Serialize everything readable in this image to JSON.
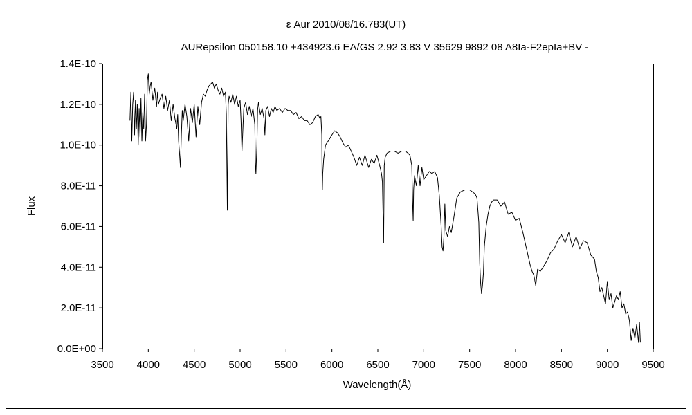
{
  "chart_data": {
    "type": "line",
    "title": "ε  Aur   2010/08/16.783(UT)",
    "subtitle": "AURepsilon 050158.10 +434923.6 EA/GS 2.92 3.83 V 35629 9892 08 A8Ia-F2epIa+BV -",
    "xlabel": "Wavelength(Å)",
    "ylabel": "Flux",
    "xlim": [
      3500,
      9500
    ],
    "ylim": [
      0,
      1.4e-10
    ],
    "x_ticks": [
      3500,
      4000,
      4500,
      5000,
      5500,
      6000,
      6500,
      7000,
      7500,
      8000,
      8500,
      9000,
      9500
    ],
    "x_tick_labels": [
      "3500",
      "4000",
      "4500",
      "5000",
      "5500",
      "6000",
      "6500",
      "7000",
      "7500",
      "8000",
      "8500",
      "9000",
      "9500"
    ],
    "y_ticks": [
      0,
      2e-11,
      4e-11,
      6e-11,
      8e-11,
      1e-10,
      1.2e-10,
      1.4e-10
    ],
    "y_tick_labels": [
      "0.0E+00",
      "2.0E-11",
      "4.0E-11",
      "6.0E-11",
      "8.0E-11",
      "1.0E-10",
      "1.2E-10",
      "1.4E-10"
    ],
    "grid": false,
    "legend": "none",
    "line_color": "#000000",
    "series": [
      {
        "x": [
          3800,
          3810,
          3820,
          3830,
          3840,
          3850,
          3860,
          3870,
          3880,
          3890,
          3900,
          3910,
          3920,
          3930,
          3940,
          3950,
          3960,
          3970,
          3980,
          3990,
          4000,
          4010,
          4020,
          4030,
          4050,
          4070,
          4090,
          4101,
          4110,
          4130,
          4150,
          4170,
          4190,
          4210,
          4230,
          4250,
          4270,
          4290,
          4310,
          4320,
          4330,
          4340,
          4350,
          4360,
          4370,
          4380,
          4400,
          4420,
          4440,
          4460,
          4480,
          4500,
          4520,
          4540,
          4560,
          4580,
          4600,
          4620,
          4640,
          4660,
          4680,
          4700,
          4720,
          4740,
          4760,
          4780,
          4800,
          4820,
          4840,
          4850,
          4861,
          4870,
          4880,
          4900,
          4920,
          4940,
          4960,
          4980,
          5000,
          5010,
          5020,
          5040,
          5060,
          5080,
          5100,
          5120,
          5140,
          5160,
          5167,
          5172,
          5183,
          5190,
          5200,
          5220,
          5240,
          5260,
          5270,
          5280,
          5300,
          5320,
          5340,
          5360,
          5380,
          5400,
          5430,
          5460,
          5490,
          5520,
          5550,
          5580,
          5610,
          5640,
          5670,
          5700,
          5730,
          5760,
          5790,
          5820,
          5850,
          5870,
          5880,
          5890,
          5893,
          5896,
          5900,
          5910,
          5930,
          5960,
          6000,
          6030,
          6060,
          6090,
          6120,
          6150,
          6180,
          6210,
          6240,
          6270,
          6300,
          6330,
          6360,
          6400,
          6430,
          6460,
          6490,
          6520,
          6540,
          6550,
          6563,
          6570,
          6580,
          6600,
          6640,
          6680,
          6720,
          6760,
          6800,
          6830,
          6850,
          6870,
          6880,
          6885,
          6890,
          6900,
          6920,
          6940,
          6960,
          6980,
          7000,
          7030,
          7060,
          7090,
          7120,
          7150,
          7170,
          7190,
          7200,
          7210,
          7220,
          7230,
          7240,
          7260,
          7280,
          7300,
          7330,
          7360,
          7400,
          7450,
          7500,
          7530,
          7560,
          7580,
          7600,
          7610,
          7620,
          7630,
          7640,
          7650,
          7660,
          7680,
          7700,
          7720,
          7740,
          7760,
          7800,
          7840,
          7880,
          7920,
          7960,
          8000,
          8040,
          8080,
          8120,
          8160,
          8180,
          8200,
          8220,
          8240,
          8270,
          8300,
          8340,
          8380,
          8420,
          8460,
          8500,
          8540,
          8580,
          8620,
          8660,
          8700,
          8740,
          8780,
          8820,
          8860,
          8880,
          8900,
          8920,
          8940,
          8960,
          8980,
          9000,
          9020,
          9040,
          9060,
          9080,
          9100,
          9120,
          9140,
          9160,
          9180,
          9200,
          9220,
          9240,
          9260,
          9280,
          9300,
          9320,
          9340,
          9350,
          9360
        ],
        "y": [
          1.12e-10,
          1.26e-10,
          1.02e-10,
          1.2e-10,
          1.26e-10,
          1.05e-10,
          1.22e-10,
          1.08e-10,
          1.2e-10,
          1e-10,
          1.18e-10,
          1.04e-10,
          1.23e-10,
          1.02e-10,
          1.16e-10,
          1.08e-10,
          1.25e-10,
          1.02e-10,
          1.1e-10,
          1.32e-10,
          1.35e-10,
          1.25e-10,
          1.29e-10,
          1.31e-10,
          1.22e-10,
          1.28e-10,
          1.19e-10,
          1.26e-10,
          1.2e-10,
          1.23e-10,
          1.25e-10,
          1.18e-10,
          1.24e-10,
          1.17e-10,
          1.22e-10,
          1.12e-10,
          1.2e-10,
          1.13e-10,
          1.08e-10,
          1.15e-10,
          1.02e-10,
          9.6e-11,
          8.9e-11,
          1.05e-10,
          1.17e-10,
          1.12e-10,
          1.2e-10,
          1.14e-10,
          1.02e-10,
          1.18e-10,
          1.11e-10,
          1.2e-10,
          1.04e-10,
          1.19e-10,
          1.1e-10,
          1.21e-10,
          1.25e-10,
          1.24e-10,
          1.27e-10,
          1.29e-10,
          1.3e-10,
          1.31e-10,
          1.28e-10,
          1.3e-10,
          1.27e-10,
          1.25e-10,
          1.28e-10,
          1.24e-10,
          1.26e-10,
          1.15e-10,
          6.8e-11,
          1.2e-10,
          1.24e-10,
          1.21e-10,
          1.25e-10,
          1.2e-10,
          1.24e-10,
          1.19e-10,
          1.22e-10,
          1.12e-10,
          9.7e-11,
          1.18e-10,
          1.21e-10,
          1.15e-10,
          1.19e-10,
          1.14e-10,
          1.18e-10,
          1.1e-10,
          9e-11,
          8.6e-11,
          1e-10,
          1.17e-10,
          1.21e-10,
          1.15e-10,
          1.18e-10,
          1.13e-10,
          1.05e-10,
          1.17e-10,
          1.19e-10,
          1.14e-10,
          1.18e-10,
          1.16e-10,
          1.19e-10,
          1.17e-10,
          1.18e-10,
          1.16e-10,
          1.18e-10,
          1.17e-10,
          1.17e-10,
          1.15e-10,
          1.16e-10,
          1.13e-10,
          1.14e-10,
          1.12e-10,
          1.12e-10,
          1.1e-10,
          1.11e-10,
          1.14e-10,
          1.15e-10,
          1.13e-10,
          1.14e-10,
          1.05e-10,
          8.5e-11,
          7.8e-11,
          8.6e-11,
          9.3e-11,
          1e-10,
          1.02e-10,
          1.05e-10,
          1.07e-10,
          1.06e-10,
          1.04e-10,
          1.01e-10,
          9.9e-11,
          1e-10,
          9.7e-11,
          9.4e-11,
          9e-11,
          9.4e-11,
          9e-11,
          9.5e-11,
          8.9e-11,
          9.3e-11,
          9.1e-11,
          9.5e-11,
          9e-11,
          8.6e-11,
          8.2e-11,
          5.2e-11,
          9e-11,
          9.4e-11,
          9.6e-11,
          9.7e-11,
          9.7e-11,
          9.6e-11,
          9.7e-11,
          9.7e-11,
          9.6e-11,
          9.5e-11,
          9e-11,
          7e-11,
          6.3e-11,
          7.8e-11,
          8.5e-11,
          8e-11,
          9e-11,
          8e-11,
          8.9e-11,
          8.3e-11,
          8.5e-11,
          8.7e-11,
          8.6e-11,
          8.7e-11,
          8.4e-11,
          7.5e-11,
          6e-11,
          5e-11,
          4.8e-11,
          5.5e-11,
          7.1e-11,
          5.8e-11,
          5.5e-11,
          6e-11,
          5.7e-11,
          6.5e-11,
          7.4e-11,
          7.7e-11,
          7.8e-11,
          7.8e-11,
          7.7e-11,
          7.6e-11,
          7.4e-11,
          6.2e-11,
          4.2e-11,
          3.2e-11,
          2.7e-11,
          3.1e-11,
          3.7e-11,
          5e-11,
          6e-11,
          6.6e-11,
          7e-11,
          7.2e-11,
          7.3e-11,
          7.3e-11,
          7e-11,
          7.2e-11,
          6.6e-11,
          6.7e-11,
          6.3e-11,
          6.4e-11,
          5.7e-11,
          4.9e-11,
          4.1e-11,
          3.8e-11,
          3.6e-11,
          3.1e-11,
          3.9e-11,
          3.8e-11,
          4e-11,
          4.3e-11,
          4.7e-11,
          4.9e-11,
          5.3e-11,
          5.6e-11,
          5.2e-11,
          5.7e-11,
          5e-11,
          5.5e-11,
          4.9e-11,
          5.3e-11,
          5.2e-11,
          4.6e-11,
          4.4e-11,
          3.8e-11,
          3.5e-11,
          2.8e-11,
          3e-11,
          2.6e-11,
          2.2e-11,
          3.3e-11,
          2.4e-11,
          2.7e-11,
          2e-11,
          2.3e-11,
          2.6e-11,
          2.4e-11,
          2.8e-11,
          2e-11,
          2.2e-11,
          1.7e-11,
          1.8e-11,
          1.4e-11,
          4e-12,
          1e-11,
          5e-12,
          1.2e-11,
          3e-12,
          1.3e-11,
          3e-12
        ]
      }
    ]
  }
}
